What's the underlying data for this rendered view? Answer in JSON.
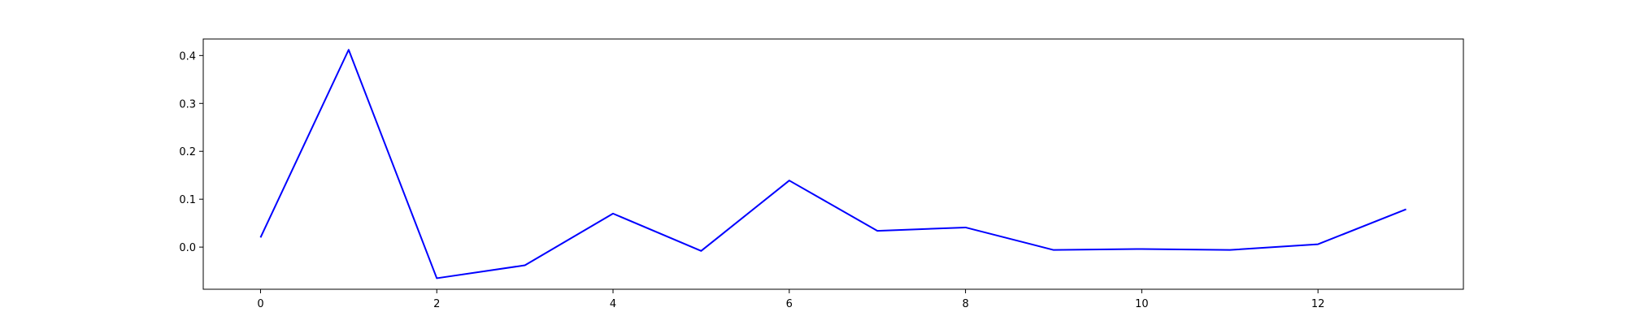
{
  "chart_data": {
    "type": "line",
    "title": "",
    "xlabel": "",
    "ylabel": "",
    "xlim": [
      -0.65,
      13.65
    ],
    "ylim": [
      -0.088,
      0.4345
    ],
    "grid": false,
    "legend": "none",
    "xticks": [
      0,
      2,
      4,
      6,
      8,
      10,
      12
    ],
    "xtick_labels": [
      "0",
      "2",
      "4",
      "6",
      "8",
      "10",
      "12"
    ],
    "yticks": [
      0.0,
      0.1,
      0.2,
      0.3,
      0.4
    ],
    "ytick_labels": [
      "0.0",
      "0.1",
      "0.2",
      "0.3",
      "0.4"
    ],
    "series": [
      {
        "color": "#0000ff",
        "x": [
          0,
          1,
          2,
          3,
          4,
          5,
          6,
          7,
          8,
          9,
          10,
          11,
          12,
          13
        ],
        "y": [
          0.02,
          0.412,
          -0.065,
          -0.038,
          0.07,
          -0.008,
          0.139,
          0.034,
          0.041,
          -0.006,
          -0.004,
          -0.006,
          0.006,
          0.079
        ]
      }
    ]
  }
}
